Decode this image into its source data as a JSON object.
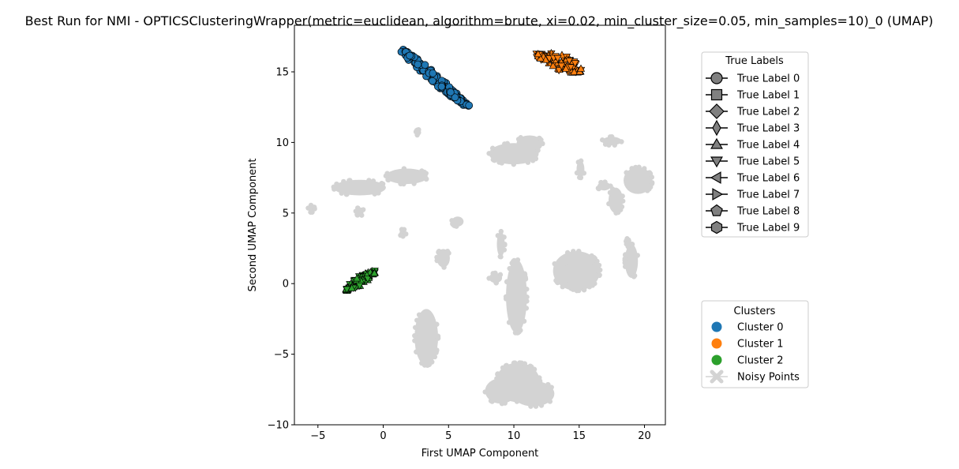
{
  "chart_data": {
    "type": "scatter",
    "title": "Best Run for NMI - OPTICSClusteringWrapper(metric=euclidean, algorithm=brute, xi=0.02, min_cluster_size=0.05, min_samples=10)_0 (UMAP)",
    "xlabel": "First UMAP Component",
    "ylabel": "Second UMAP Component",
    "xlim": [
      -6.8,
      21.6
    ],
    "ylim": [
      -10,
      18.3
    ],
    "x_ticks": [
      -5,
      0,
      5,
      10,
      15,
      20
    ],
    "x_tick_labels": [
      "−5",
      "0",
      "5",
      "10",
      "15",
      "20"
    ],
    "y_ticks": [
      -10,
      -5,
      0,
      5,
      10,
      15
    ],
    "y_tick_labels": [
      "−10",
      "−5",
      "0",
      "5",
      "10",
      "15"
    ],
    "grid": false,
    "noise_color": "#d3d3d3",
    "cluster_colors": [
      "#1f77b4",
      "#ff7f0e",
      "#2ca02c"
    ],
    "noise_regions": [
      {
        "cx": -5.5,
        "cy": 5.3,
        "rx": 0.25,
        "ry": 0.25
      },
      {
        "cx": 2.7,
        "cy": 10.7,
        "rx": 0.2,
        "ry": 0.2
      },
      {
        "cx": 1.5,
        "cy": 3.6,
        "rx": 0.25,
        "ry": 0.25
      },
      {
        "cx": -1.8,
        "cy": 6.8,
        "rx": 2.0,
        "ry": 0.55
      },
      {
        "cx": 1.8,
        "cy": 7.6,
        "rx": 1.6,
        "ry": 0.55
      },
      {
        "cx": -1.8,
        "cy": 5.1,
        "rx": 0.3,
        "ry": 0.3
      },
      {
        "cx": 5.7,
        "cy": 4.4,
        "rx": 0.45,
        "ry": 0.35
      },
      {
        "cx": 4.6,
        "cy": 1.8,
        "rx": 0.5,
        "ry": 0.65
      },
      {
        "cx": 10.0,
        "cy": 9.2,
        "rx": 1.9,
        "ry": 0.75
      },
      {
        "cx": 11.2,
        "cy": 9.9,
        "rx": 1.0,
        "ry": 0.6
      },
      {
        "cx": 9.0,
        "cy": 2.8,
        "rx": 0.3,
        "ry": 0.9
      },
      {
        "cx": 8.6,
        "cy": 0.4,
        "rx": 0.5,
        "ry": 0.35
      },
      {
        "cx": 10.2,
        "cy": -0.9,
        "rx": 0.8,
        "ry": 2.6
      },
      {
        "cx": 14.8,
        "cy": 0.9,
        "rx": 1.8,
        "ry": 1.4
      },
      {
        "cx": 15.0,
        "cy": 0.6,
        "rx": 1.2,
        "ry": 1.1
      },
      {
        "cx": 19.0,
        "cy": 1.6,
        "rx": 0.5,
        "ry": 1.2
      },
      {
        "cx": 17.5,
        "cy": 10.1,
        "rx": 0.75,
        "ry": 0.3
      },
      {
        "cx": 15.1,
        "cy": 8.1,
        "rx": 0.3,
        "ry": 0.6
      },
      {
        "cx": 19.5,
        "cy": 7.3,
        "rx": 1.1,
        "ry": 0.95
      },
      {
        "cx": 17.8,
        "cy": 5.9,
        "rx": 0.55,
        "ry": 0.9
      },
      {
        "cx": 16.9,
        "cy": 6.9,
        "rx": 0.5,
        "ry": 0.3
      },
      {
        "cx": 18.6,
        "cy": 3.0,
        "rx": 0.2,
        "ry": 0.2
      },
      {
        "cx": 3.3,
        "cy": -3.8,
        "rx": 0.9,
        "ry": 2.0
      },
      {
        "cx": 10.3,
        "cy": -7.0,
        "rx": 1.7,
        "ry": 1.4
      },
      {
        "cx": 9.0,
        "cy": -7.6,
        "rx": 1.2,
        "ry": 0.9
      },
      {
        "cx": 11.5,
        "cy": -7.8,
        "rx": 1.6,
        "ry": 0.9
      }
    ],
    "clusters": [
      {
        "name": "Cluster 0",
        "shape": "circle",
        "x": [
          1.45,
          6.5
        ],
        "y": [
          16.5,
          12.5
        ],
        "w": 0.65
      },
      {
        "name": "Cluster 1",
        "shape": "triangle",
        "x": [
          11.7,
          15.2
        ],
        "y": [
          16.2,
          15.1
        ],
        "w": 1.1
      },
      {
        "name": "Cluster 2",
        "shape": "triangle",
        "x": [
          -2.9,
          -0.6
        ],
        "y": [
          -0.5,
          0.9
        ],
        "w": 0.55
      }
    ],
    "legend_true": {
      "title": "True Labels",
      "entries": [
        "True Label 0",
        "True Label 1",
        "True Label 2",
        "True Label 3",
        "True Label 4",
        "True Label 5",
        "True Label 6",
        "True Label 7",
        "True Label 8",
        "True Label 9"
      ],
      "marker_color": "#808080"
    },
    "legend_clusters": {
      "title": "Clusters",
      "entries": [
        "Cluster 0",
        "Cluster 1",
        "Cluster 2",
        "Noisy Points"
      ],
      "colors": [
        "#1f77b4",
        "#ff7f0e",
        "#2ca02c",
        "#d3d3d3"
      ]
    }
  }
}
